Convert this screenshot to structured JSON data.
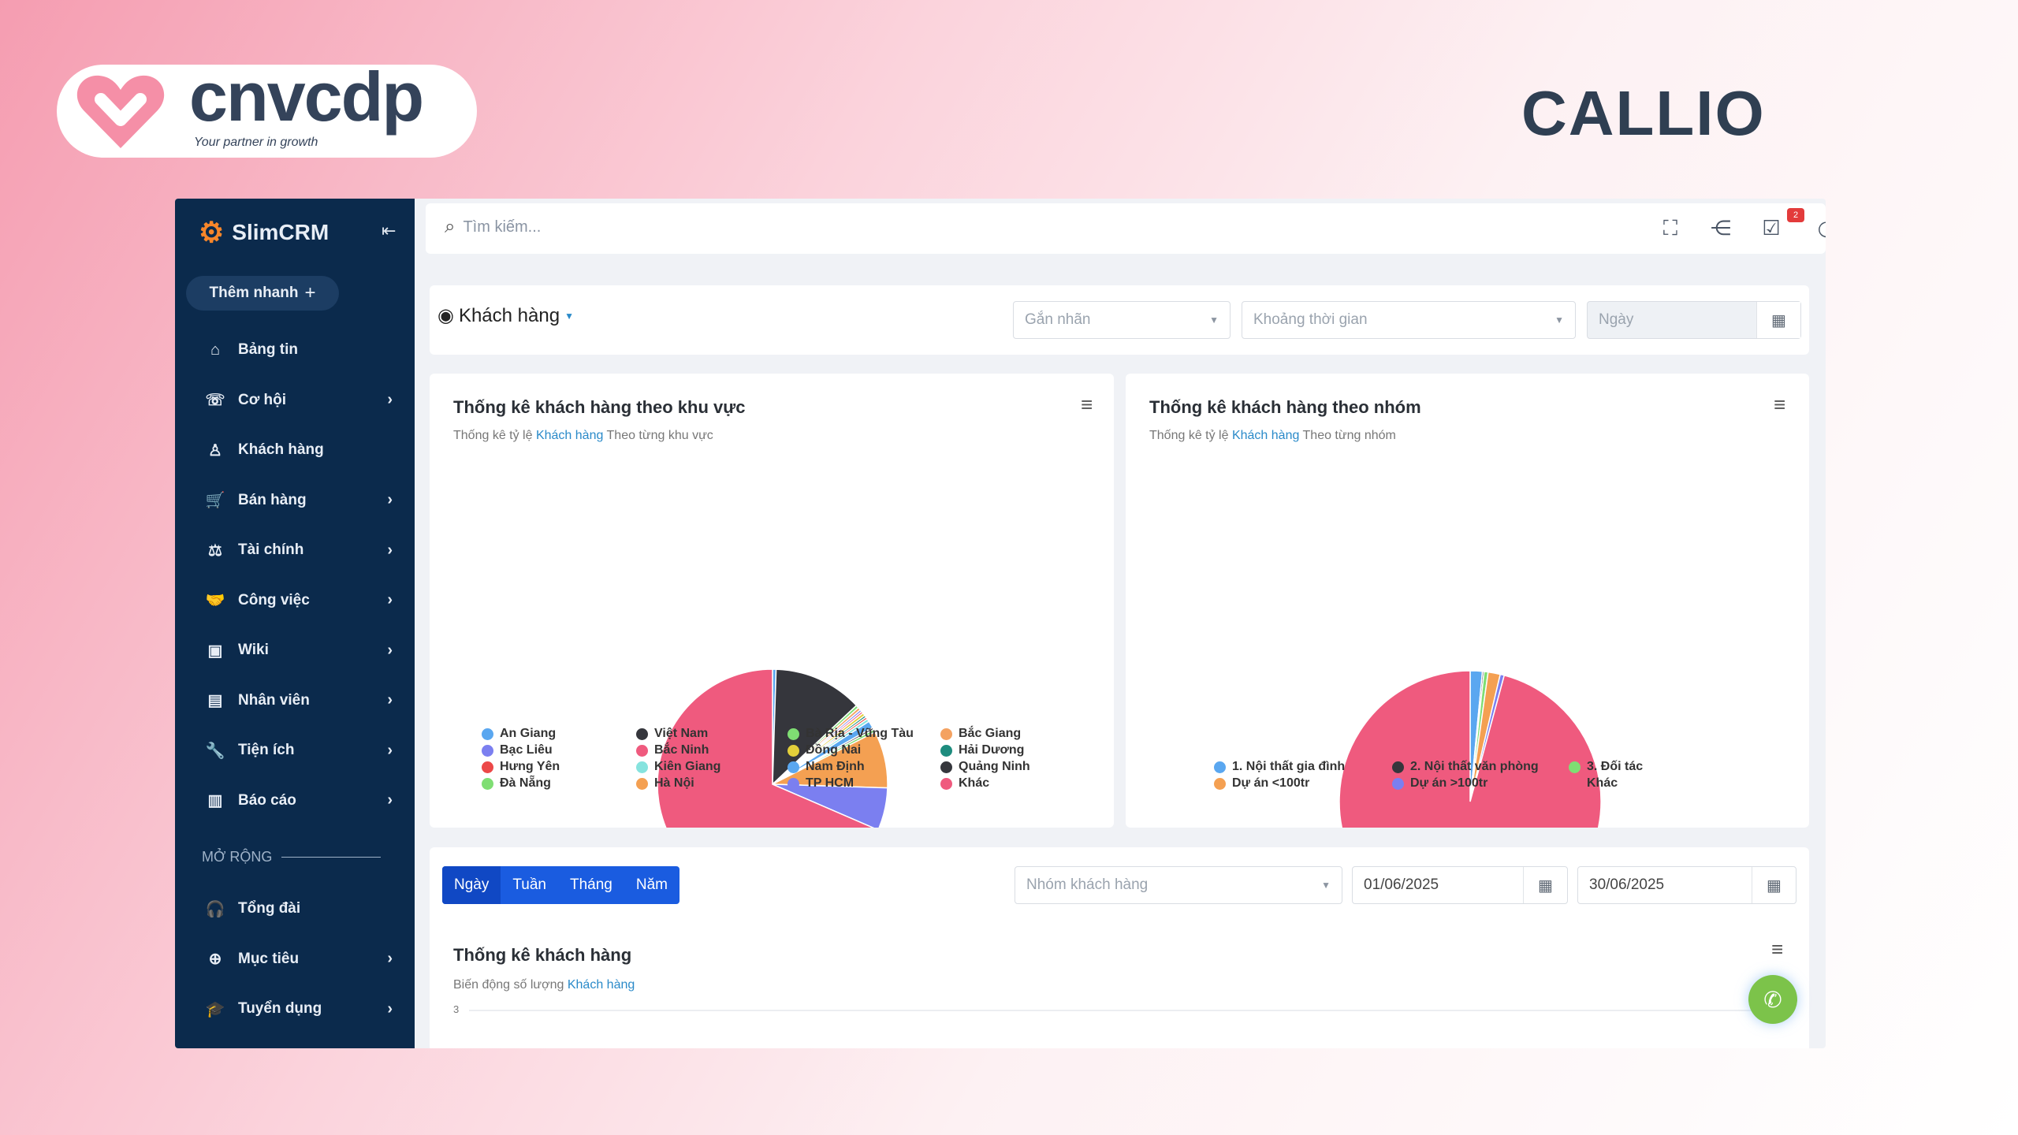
{
  "branding": {
    "partner_logo": "cnvcdp",
    "partner_tagline": "Your partner in growth",
    "callio": "CALLIO"
  },
  "sidebar": {
    "brand": "SlimCRM",
    "quick_add": "Thêm nhanh",
    "items": [
      {
        "label": "Bảng tin",
        "icon": "home-icon",
        "glyph": "⌂",
        "chevron": false
      },
      {
        "label": "Cơ hội",
        "icon": "phone-icon",
        "glyph": "☏",
        "chevron": true
      },
      {
        "label": "Khách hàng",
        "icon": "user-icon",
        "glyph": "♙",
        "chevron": false
      },
      {
        "label": "Bán hàng",
        "icon": "cart-icon",
        "glyph": "🛒",
        "chevron": true
      },
      {
        "label": "Tài chính",
        "icon": "scale-icon",
        "glyph": "⚖",
        "chevron": true
      },
      {
        "label": "Công việc",
        "icon": "handshake-icon",
        "glyph": "🤝",
        "chevron": true
      },
      {
        "label": "Wiki",
        "icon": "wiki-icon",
        "glyph": "▣",
        "chevron": true
      },
      {
        "label": "Nhân viên",
        "icon": "id-card-icon",
        "glyph": "▤",
        "chevron": true
      },
      {
        "label": "Tiện ích",
        "icon": "wrench-icon",
        "glyph": "🔧",
        "chevron": true
      },
      {
        "label": "Báo cáo",
        "icon": "bar-chart-icon",
        "glyph": "▥",
        "chevron": true
      }
    ],
    "section_label": "MỞ RỘNG",
    "ext_items": [
      {
        "label": "Tổng đài",
        "icon": "headset-icon",
        "glyph": "🎧",
        "chevron": false
      },
      {
        "label": "Mục tiêu",
        "icon": "target-icon",
        "glyph": "⊕",
        "chevron": true
      },
      {
        "label": "Tuyển dụng",
        "icon": "graduation-cap-icon",
        "glyph": "🎓",
        "chevron": true
      }
    ]
  },
  "topbar": {
    "search_placeholder": "Tìm kiếm...",
    "task_badge": "2"
  },
  "filter": {
    "module": "Khách hàng",
    "tag_placeholder": "Gắn nhãn",
    "period_placeholder": "Khoảng thời gian",
    "date_placeholder": "Ngày"
  },
  "chart_data": [
    {
      "type": "pie",
      "title": "Thống kê khách hàng theo khu vực",
      "subtitle_pre": "Thống kê tỷ lệ",
      "subtitle_link": "Khách hàng",
      "subtitle_post": "Theo từng khu vực",
      "legend_position": "bottom",
      "slices": [
        {
          "label": "An Giang",
          "value": 0.5,
          "color": "#5aa7f0"
        },
        {
          "label": "Việt Nam",
          "value": 12.5,
          "color": "#35363c"
        },
        {
          "label": "Bà Rịa - Vũng Tàu",
          "value": 0.4,
          "color": "#7fde73"
        },
        {
          "label": "Bắc Giang",
          "value": 0.4,
          "color": "#f4a261"
        },
        {
          "label": "Bạc Liêu",
          "value": 0.3,
          "color": "#7b7ff0"
        },
        {
          "label": "Bắc Ninh",
          "value": 0.3,
          "color": "#ef5a7e"
        },
        {
          "label": "Đồng Nai",
          "value": 0.4,
          "color": "#e3cf3a"
        },
        {
          "label": "Hải Dương",
          "value": 0.3,
          "color": "#1e8c7e"
        },
        {
          "label": "Hưng Yên",
          "value": 0.3,
          "color": "#ec4848"
        },
        {
          "label": "Kiên Giang",
          "value": 0.4,
          "color": "#86e3de"
        },
        {
          "label": "Nam Định",
          "value": 1.0,
          "color": "#5aa7f0"
        },
        {
          "label": "Quảng Ninh",
          "value": 0.3,
          "color": "#35363c"
        },
        {
          "label": "Đà Nẵng",
          "value": 0.4,
          "color": "#7fde73"
        },
        {
          "label": "Hà Nội",
          "value": 8.0,
          "color": "#f4a052"
        },
        {
          "label": "TP HCM",
          "value": 6.0,
          "color": "#7b7ff0"
        },
        {
          "label": "Khác",
          "value": 68.5,
          "color": "#ef5a7e"
        }
      ],
      "legend_order": [
        "An Giang",
        "Việt Nam",
        "Bà Rịa - Vũng Tàu",
        "Bắc Giang",
        "Bạc Liêu",
        "Bắc Ninh",
        "Đồng Nai",
        "Hải Dương",
        "Hưng Yên",
        "Kiên Giang",
        "Nam Định",
        "Quảng Ninh",
        "Đà Nẵng",
        "Hà Nội",
        "TP HCM",
        "Khác"
      ]
    },
    {
      "type": "pie",
      "title": "Thống kê khách hàng theo nhóm",
      "subtitle_pre": "Thống kê tỷ lệ",
      "subtitle_link": "Khách hàng",
      "subtitle_post": "Theo từng nhóm",
      "legend_position": "bottom",
      "slices": [
        {
          "label": "1. Nội thất gia đình",
          "value": 1.5,
          "color": "#5aa7f0"
        },
        {
          "label": "2. Nội thất văn phòng",
          "value": 0.2,
          "color": "#35363c"
        },
        {
          "label": "3. Đối tác",
          "value": 0.5,
          "color": "#7fde73"
        },
        {
          "label": "Dự án <100tr",
          "value": 1.5,
          "color": "#f4a052"
        },
        {
          "label": "Dự án >100tr",
          "value": 0.5,
          "color": "#7b7ff0"
        },
        {
          "label": "Khác",
          "value": 95.8,
          "color": "#ef5a7e"
        }
      ],
      "legend_order": [
        "1. Nội thất gia đình",
        "2. Nội thất văn phòng",
        "3. Đối tác",
        "Dự án <100tr",
        "Dự án >100tr",
        "Khác"
      ]
    }
  ],
  "trend": {
    "periods": [
      "Ngày",
      "Tuần",
      "Tháng",
      "Năm"
    ],
    "active_period": "Ngày",
    "group_placeholder": "Nhóm khách hàng",
    "date_from": "01/06/2025",
    "date_to": "30/06/2025",
    "title": "Thống kê khách hàng",
    "subtitle_pre": "Biến động số lượng",
    "subtitle_link": "Khách hàng",
    "y_tick": "3"
  }
}
